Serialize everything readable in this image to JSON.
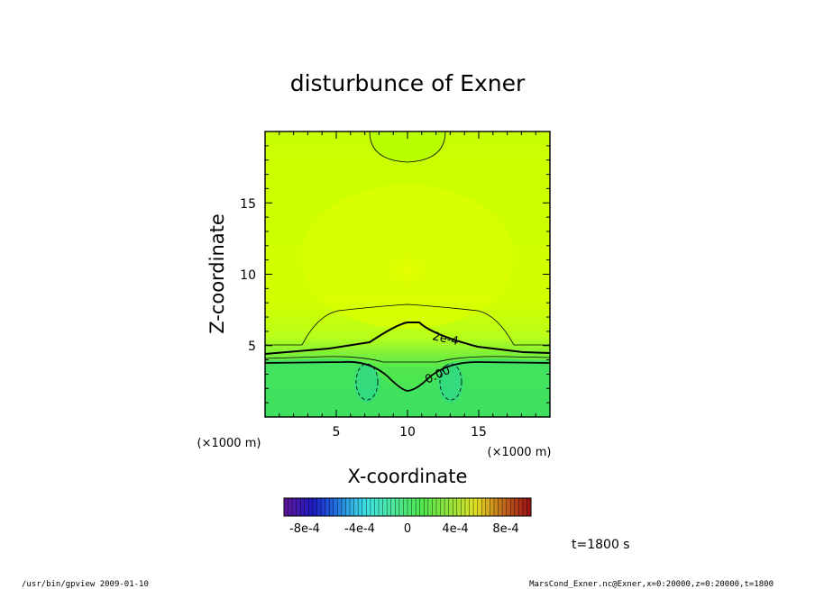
{
  "chart_data": {
    "type": "heatmap",
    "title": "disturbunce of Exner",
    "xlabel": "X-coordinate",
    "ylabel": "Z-coordinate",
    "x_unit": "(×1000 m)",
    "y_unit": "(×1000 m)",
    "xlim": [
      0,
      20
    ],
    "ylim": [
      0,
      20
    ],
    "x_ticks": [
      5,
      10,
      15
    ],
    "y_ticks": [
      5,
      10,
      15
    ],
    "contour_labels": [
      {
        "text": "2e-4",
        "x": 13.0,
        "z": 5.3
      },
      {
        "text": "0.00",
        "x": 12.5,
        "z": 2.9
      }
    ],
    "field_description_regions": [
      {
        "region": "upper domain z>5",
        "approx_value": 0.00025,
        "color": "#ccff00"
      },
      {
        "region": "near z=10 center",
        "approx_value": 0.00028,
        "color": "#e6ff00"
      },
      {
        "region": "top center bubble",
        "approx_value": 0.00023,
        "color": "#b3ff00"
      },
      {
        "region": "lower domain z<4",
        "approx_value": -5e-05,
        "color": "#4de84d"
      },
      {
        "region": "cells near x=7 and x=13, z≈2.5",
        "approx_value": -0.00015,
        "color": "#33e06a"
      }
    ],
    "colorbar": {
      "ticks": [
        "-8e-4",
        "-4e-4",
        "0",
        "4e-4",
        "8e-4"
      ],
      "range": [
        -0.001,
        0.001
      ]
    },
    "time_label": "t=1800 s"
  },
  "footer": {
    "left": "/usr/bin/gpview   2009-01-10",
    "right": "MarsCond_Exner.nc@Exner,x=0:20000,z=0:20000,t=1800"
  }
}
